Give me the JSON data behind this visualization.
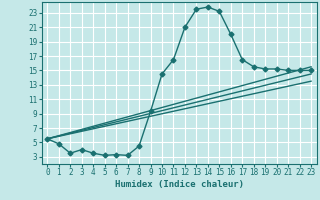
{
  "title": "",
  "xlabel": "Humidex (Indice chaleur)",
  "ylabel": "",
  "background_color": "#c5e8e8",
  "grid_color": "#ffffff",
  "line_color": "#1a7070",
  "xlim": [
    -0.5,
    23.5
  ],
  "ylim": [
    2,
    24.5
  ],
  "xticks": [
    0,
    1,
    2,
    3,
    4,
    5,
    6,
    7,
    8,
    9,
    10,
    11,
    12,
    13,
    14,
    15,
    16,
    17,
    18,
    19,
    20,
    21,
    22,
    23
  ],
  "yticks": [
    3,
    5,
    7,
    9,
    11,
    13,
    15,
    17,
    19,
    21,
    23
  ],
  "line1_x": [
    0,
    1,
    2,
    3,
    4,
    5,
    6,
    7,
    8,
    9,
    10,
    11,
    12,
    13,
    14,
    15,
    16,
    17,
    18,
    19,
    20,
    21,
    22,
    23
  ],
  "line1_y": [
    5.5,
    4.8,
    3.5,
    4.0,
    3.5,
    3.2,
    3.3,
    3.2,
    4.5,
    9.3,
    14.5,
    16.5,
    21.0,
    23.5,
    23.8,
    23.2,
    20.0,
    16.5,
    15.5,
    15.2,
    15.2,
    15.0,
    15.0,
    15.0
  ],
  "line2_x": [
    0,
    23
  ],
  "line2_y": [
    5.5,
    15.5
  ],
  "line3_x": [
    0,
    23
  ],
  "line3_y": [
    5.5,
    14.5
  ],
  "line4_x": [
    0,
    23
  ],
  "line4_y": [
    5.5,
    13.5
  ],
  "marker_style": "D",
  "marker_size": 2.5,
  "line_width": 1.0
}
